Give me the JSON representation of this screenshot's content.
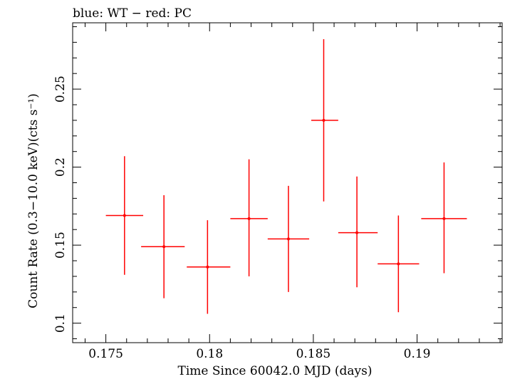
{
  "header": {
    "title": "blue: WT − red: PC"
  },
  "chart_data": {
    "type": "scatter",
    "title": "blue: WT − red: PC",
    "xlabel": "Time Since 60042.0 MJD (days)",
    "ylabel": "Count Rate (0.3−10.0 keV)(cts s⁻¹)",
    "xlim": [
      0.1734,
      0.1941
    ],
    "ylim": [
      0.0875,
      0.2925
    ],
    "x_ticks": [
      0.175,
      0.18,
      0.185,
      0.19
    ],
    "x_tick_labels": [
      "0.175",
      "0.18",
      "0.185",
      "0.19"
    ],
    "y_ticks": [
      0.1,
      0.15,
      0.2,
      0.25
    ],
    "y_tick_labels": [
      "0.1",
      "0.15",
      "0.2",
      "0.25"
    ],
    "grid": false,
    "series": [
      {
        "name": "PC",
        "color": "#ff0000",
        "points": [
          {
            "x": 0.1759,
            "xerr_lo": 0.0009,
            "xerr_hi": 0.0009,
            "y": 0.169,
            "yerr_lo": 0.038,
            "yerr_hi": 0.038
          },
          {
            "x": 0.1778,
            "xerr_lo": 0.0011,
            "xerr_hi": 0.001,
            "y": 0.149,
            "yerr_lo": 0.033,
            "yerr_hi": 0.033
          },
          {
            "x": 0.1799,
            "xerr_lo": 0.001,
            "xerr_hi": 0.0011,
            "y": 0.136,
            "yerr_lo": 0.03,
            "yerr_hi": 0.03
          },
          {
            "x": 0.1819,
            "xerr_lo": 0.0009,
            "xerr_hi": 0.0009,
            "y": 0.167,
            "yerr_lo": 0.037,
            "yerr_hi": 0.038
          },
          {
            "x": 0.1838,
            "xerr_lo": 0.001,
            "xerr_hi": 0.001,
            "y": 0.154,
            "yerr_lo": 0.034,
            "yerr_hi": 0.034
          },
          {
            "x": 0.1855,
            "xerr_lo": 0.0006,
            "xerr_hi": 0.0007,
            "y": 0.23,
            "yerr_lo": 0.052,
            "yerr_hi": 0.052
          },
          {
            "x": 0.1871,
            "xerr_lo": 0.0009,
            "xerr_hi": 0.001,
            "y": 0.158,
            "yerr_lo": 0.035,
            "yerr_hi": 0.036
          },
          {
            "x": 0.1891,
            "xerr_lo": 0.001,
            "xerr_hi": 0.001,
            "y": 0.138,
            "yerr_lo": 0.031,
            "yerr_hi": 0.031
          },
          {
            "x": 0.1913,
            "xerr_lo": 0.0011,
            "xerr_hi": 0.0011,
            "y": 0.167,
            "yerr_lo": 0.035,
            "yerr_hi": 0.036
          }
        ]
      }
    ]
  }
}
